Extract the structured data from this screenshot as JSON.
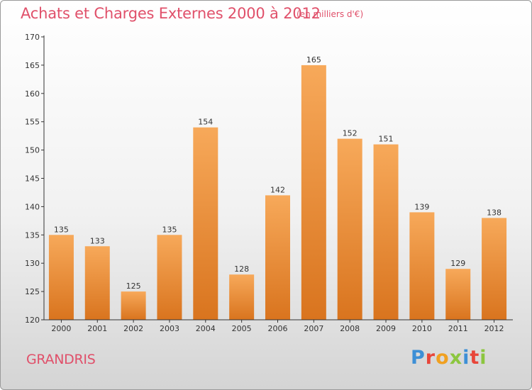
{
  "header": {
    "title": "Achats et Charges Externes 2000 à 2012",
    "subtitle": "(en milliers d'€)"
  },
  "footer": {
    "town": "GRANDRIS",
    "logo_text": "Proxiti",
    "logo_colors": [
      "#3d8fd6",
      "#e8463a",
      "#f0a020",
      "#8cc63f",
      "#3d8fd6",
      "#e8463a",
      "#8cc63f"
    ]
  },
  "colors": {
    "bar_light": "#f7a95a",
    "bar_dark": "#d9741e",
    "title": "#e0506a"
  },
  "chart_data": {
    "type": "bar",
    "title": "Achats et Charges Externes 2000 à 2012",
    "xlabel": "",
    "ylabel": "",
    "categories": [
      "2000",
      "2001",
      "2002",
      "2003",
      "2004",
      "2005",
      "2006",
      "2007",
      "2008",
      "2009",
      "2010",
      "2011",
      "2012"
    ],
    "values": [
      135,
      133,
      125,
      135,
      154,
      128,
      142,
      165,
      152,
      151,
      139,
      129,
      138
    ],
    "value_labels": [
      "135",
      "133",
      "125",
      "135",
      "154",
      "128",
      "142",
      "165",
      "152",
      "151",
      "139",
      "129",
      "138"
    ],
    "ylim": [
      120,
      170
    ],
    "yticks": [
      "120",
      "125",
      "130",
      "135",
      "140",
      "145",
      "150",
      "155",
      "160",
      "165",
      "170"
    ],
    "grid": false,
    "legend": "none"
  }
}
